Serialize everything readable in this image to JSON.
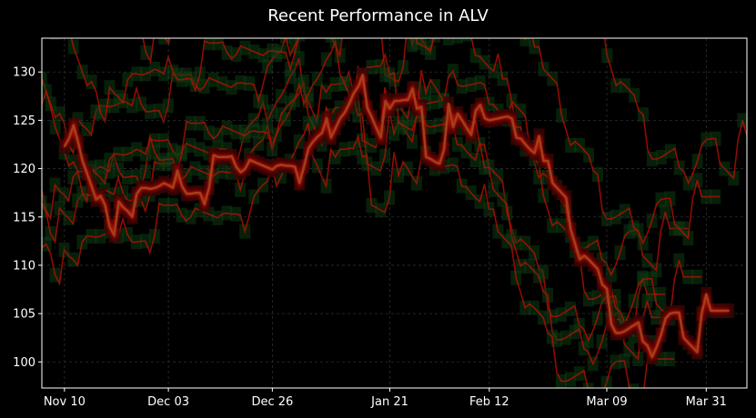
{
  "chart_data": {
    "type": "line",
    "title": "Recent Performance in ALV",
    "xlabel": "",
    "ylabel": "",
    "ylim": [
      97.3,
      133.5
    ],
    "xlim": [
      "2023-11-05",
      "2024-04-09"
    ],
    "grid": true,
    "legend": "none",
    "colors": {
      "background": "#000000",
      "line": "#a0401c",
      "glow": "#dd1100",
      "ghost_up": "#0d3a12",
      "ghost_down": "#c01000",
      "grid": "#2e2e2e",
      "text": "#ffffff"
    },
    "x_ticks": [
      {
        "date": "2023-11-10",
        "label": "Nov 10"
      },
      {
        "date": "2023-12-03",
        "label": "Dec 03"
      },
      {
        "date": "2023-12-26",
        "label": "Dec 26"
      },
      {
        "date": "2024-01-21",
        "label": "Jan 21"
      },
      {
        "date": "2024-02-12",
        "label": "Feb 12"
      },
      {
        "date": "2024-03-09",
        "label": "Mar 09"
      },
      {
        "date": "2024-03-31",
        "label": "Mar 31"
      }
    ],
    "y_ticks": [
      100,
      105,
      110,
      115,
      120,
      125,
      130
    ],
    "series": [
      {
        "x": [
          "2023-11-10",
          "2023-11-11",
          "2023-11-12",
          "2023-11-13",
          "2023-11-14",
          "2023-11-15",
          "2023-11-16",
          "2023-11-17",
          "2023-11-18",
          "2023-11-19",
          "2023-11-20",
          "2023-11-21",
          "2023-11-22",
          "2023-11-23",
          "2023-11-24",
          "2023-11-25",
          "2023-11-26",
          "2023-11-27",
          "2023-11-28",
          "2023-11-29",
          "2023-11-30",
          "2023-12-01",
          "2023-12-02",
          "2023-12-03",
          "2023-12-04",
          "2023-12-05",
          "2023-12-06",
          "2023-12-07",
          "2023-12-08",
          "2023-12-09",
          "2023-12-10",
          "2023-12-11",
          "2023-12-12",
          "2023-12-13",
          "2023-12-14",
          "2023-12-15",
          "2023-12-16",
          "2023-12-17",
          "2023-12-18",
          "2023-12-19",
          "2023-12-20",
          "2023-12-21",
          "2023-12-22",
          "2023-12-23",
          "2023-12-24",
          "2023-12-25",
          "2023-12-26",
          "2023-12-27",
          "2023-12-28",
          "2023-12-29",
          "2023-12-30",
          "2023-12-31",
          "2024-01-01",
          "2024-01-02",
          "2024-01-03",
          "2024-01-04",
          "2024-01-05",
          "2024-01-06",
          "2024-01-07",
          "2024-01-08",
          "2024-01-09",
          "2024-01-10",
          "2024-01-11",
          "2024-01-12",
          "2024-01-13",
          "2024-01-14",
          "2024-01-15",
          "2024-01-16",
          "2024-01-17",
          "2024-01-18",
          "2024-01-19",
          "2024-01-20",
          "2024-01-21",
          "2024-01-22",
          "2024-01-23",
          "2024-01-24",
          "2024-01-25",
          "2024-01-26",
          "2024-01-27",
          "2024-01-28",
          "2024-01-29",
          "2024-01-30",
          "2024-01-31",
          "2024-02-01",
          "2024-02-02",
          "2024-02-03",
          "2024-02-04",
          "2024-02-05",
          "2024-02-06",
          "2024-02-07",
          "2024-02-08",
          "2024-02-09",
          "2024-02-10",
          "2024-02-11",
          "2024-02-12",
          "2024-02-13",
          "2024-02-14",
          "2024-02-15",
          "2024-02-16",
          "2024-02-17",
          "2024-02-18",
          "2024-02-19",
          "2024-02-20",
          "2024-02-21",
          "2024-02-22",
          "2024-02-23",
          "2024-02-24",
          "2024-02-25",
          "2024-02-26",
          "2024-02-27",
          "2024-02-28",
          "2024-02-29",
          "2024-03-01",
          "2024-03-02",
          "2024-03-03",
          "2024-03-04",
          "2024-03-05",
          "2024-03-06",
          "2024-03-07",
          "2024-03-08",
          "2024-03-09",
          "2024-03-10",
          "2024-03-11",
          "2024-03-12",
          "2024-03-13",
          "2024-03-14",
          "2024-03-15",
          "2024-03-16",
          "2024-03-17",
          "2024-03-18",
          "2024-03-19",
          "2024-03-20",
          "2024-03-21",
          "2024-03-22",
          "2024-03-23",
          "2024-03-24",
          "2024-03-25",
          "2024-03-26",
          "2024-03-27",
          "2024-03-28",
          "2024-03-29",
          "2024-03-30",
          "2024-03-31",
          "2024-04-01",
          "2024-04-02",
          "2024-04-03",
          "2024-04-04",
          "2024-04-05"
        ],
        "values": [
          122.3,
          123.1,
          124.5,
          122.8,
          120.8,
          119.5,
          118.2,
          116.8,
          117.2,
          116.2,
          114.0,
          113.1,
          116.6,
          116.0,
          115.6,
          115.0,
          117.4,
          118.0,
          118.0,
          117.9,
          118.0,
          118.2,
          118.5,
          118.3,
          118.0,
          119.8,
          118.2,
          117.4,
          117.4,
          117.5,
          117.5,
          116.3,
          118.0,
          121.4,
          121.2,
          121.2,
          121.2,
          121.3,
          120.2,
          119.6,
          120.0,
          120.9,
          120.7,
          120.5,
          120.3,
          120.1,
          119.9,
          120.3,
          120.4,
          120.3,
          120.3,
          120.2,
          118.5,
          120.2,
          122.1,
          122.8,
          123.3,
          123.7,
          125.2,
          123.2,
          124.2,
          125.2,
          125.8,
          126.7,
          127.8,
          128.5,
          129.7,
          126.3,
          125.3,
          124.2,
          123.2,
          127.0,
          126.2,
          127.0,
          127.0,
          127.1,
          127.1,
          128.3,
          126.2,
          126.4,
          121.2,
          121.0,
          120.7,
          120.5,
          122.0,
          126.7,
          124.3,
          125.7,
          125.0,
          124.2,
          123.5,
          126.0,
          126.6,
          125.2,
          125.0,
          125.1,
          125.2,
          125.3,
          125.4,
          125.2,
          123.2,
          123.1,
          122.5,
          122.0,
          121.6,
          123.4,
          120.8,
          120.8,
          118.5,
          118.0,
          117.5,
          117.0,
          113.7,
          112.2,
          110.6,
          111.0,
          110.6,
          110.1,
          109.6,
          108.0,
          107.6,
          103.9,
          103.0,
          103.0,
          103.2,
          103.5,
          103.8,
          104.1,
          102.1,
          101.7,
          100.5,
          101.5,
          102.8,
          104.5,
          105.0,
          105.1,
          105.1,
          102.5,
          102.0,
          101.5,
          101.0,
          105.0,
          107.0,
          105.3,
          105.3,
          105.3,
          105.3,
          105.3
        ]
      }
    ]
  }
}
